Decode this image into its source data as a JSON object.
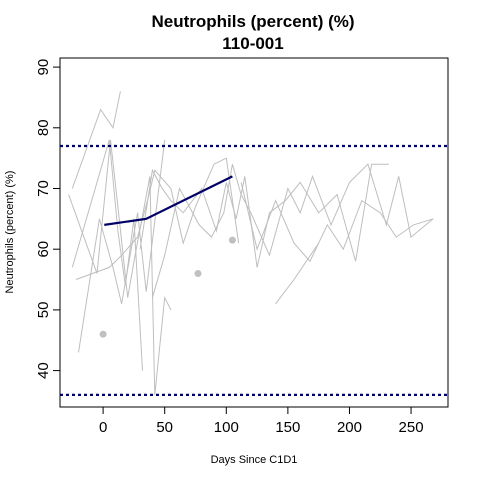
{
  "chart_data": {
    "type": "line",
    "title": "Neutrophils (percent) (%)",
    "subtitle": "110-001",
    "xlabel": "Days Since C1D1",
    "ylabel": "Neutrophils (percent) (%)",
    "xlim": [
      -35,
      280
    ],
    "ylim": [
      34,
      91.5
    ],
    "x_ticks": [
      0,
      50,
      100,
      150,
      200,
      250
    ],
    "y_ticks": [
      40,
      50,
      60,
      70,
      80,
      90
    ],
    "reference_lines": [
      77,
      36
    ],
    "colors": {
      "highlight": "#000066",
      "background_series": "#bebebe",
      "points": "#c0c0c0",
      "reference": "#000066"
    },
    "highlight_series": {
      "name": "110-001",
      "x": [
        1,
        35,
        105
      ],
      "y": [
        64,
        65,
        72
      ]
    },
    "background_series": [
      {
        "x": [
          -25,
          -2,
          8,
          14
        ],
        "y": [
          70,
          83,
          80,
          86
        ]
      },
      {
        "x": [
          -25,
          5,
          12,
          18,
          25,
          32
        ],
        "y": [
          57,
          78,
          63,
          54,
          65,
          40
        ]
      },
      {
        "x": [
          -20,
          -3,
          8,
          15,
          28,
          35,
          50
        ],
        "y": [
          43,
          65,
          57,
          51,
          66,
          53,
          78
        ]
      },
      {
        "x": [
          -28,
          -5,
          6,
          12,
          20,
          26,
          38,
          42,
          50,
          55
        ],
        "y": [
          69,
          56,
          78,
          67,
          52,
          59,
          72,
          36,
          52,
          50
        ]
      },
      {
        "x": [
          -22,
          5,
          15,
          28,
          36,
          42,
          55,
          65,
          75,
          90,
          100,
          110
        ],
        "y": [
          55,
          57,
          59,
          62,
          68,
          73,
          70,
          61,
          67,
          74,
          75,
          61
        ]
      },
      {
        "x": [
          30,
          40,
          48,
          55,
          65,
          80,
          92,
          100,
          108,
          115,
          125,
          135,
          148,
          160,
          175,
          190,
          205,
          218,
          232
        ],
        "y": [
          60,
          73,
          70,
          68,
          66,
          70,
          63,
          71,
          65,
          72,
          57,
          66,
          68,
          71,
          66,
          69,
          58,
          74,
          74
        ]
      },
      {
        "x": [
          40,
          50,
          62,
          78,
          88,
          98,
          105,
          112,
          120,
          135,
          150,
          160,
          170,
          185,
          200,
          215,
          230,
          240,
          250,
          268
        ],
        "y": [
          52,
          59,
          70,
          64,
          62,
          66,
          74,
          69,
          66,
          59,
          70,
          66,
          72,
          64,
          71,
          74,
          64,
          72,
          62,
          65
        ]
      },
      {
        "x": [
          112,
          125,
          140,
          155,
          168,
          182,
          195,
          210,
          225,
          238,
          252,
          268
        ],
        "y": [
          71,
          60,
          68,
          61,
          58,
          64,
          60,
          68,
          66,
          62,
          64,
          65
        ]
      },
      {
        "x": [
          140,
          155,
          175
        ],
        "y": [
          51,
          55,
          61
        ]
      }
    ],
    "points": {
      "x": [
        0,
        77,
        105
      ],
      "y": [
        46,
        56,
        61.5
      ]
    }
  }
}
